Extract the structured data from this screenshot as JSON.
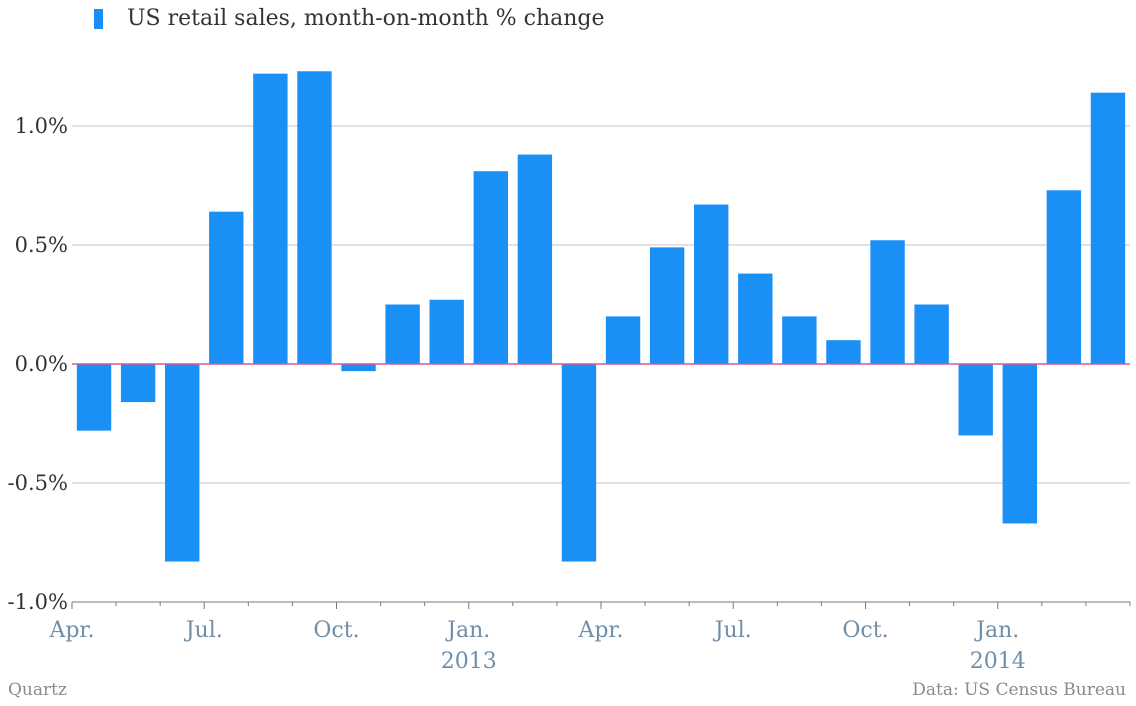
{
  "chart_data": {
    "type": "bar",
    "series": [
      {
        "name": "US retail sales, month-on-month % change",
        "color": "#1a8ff5",
        "values": [
          -0.28,
          -0.16,
          -0.83,
          0.64,
          1.22,
          1.23,
          -0.03,
          0.25,
          0.27,
          0.81,
          0.88,
          -0.83,
          0.2,
          0.49,
          0.67,
          0.38,
          0.2,
          0.1,
          0.52,
          0.25,
          -0.3,
          -0.67,
          0.73,
          1.14
        ]
      }
    ],
    "categories": [
      "Apr. 2012",
      "May 2012",
      "Jun. 2012",
      "Jul. 2012",
      "Aug. 2012",
      "Sep. 2012",
      "Oct. 2012",
      "Nov. 2012",
      "Dec. 2012",
      "Jan. 2013",
      "Feb. 2013",
      "Mar. 2013",
      "Apr. 2013",
      "May 2013",
      "Jun. 2013",
      "Jul. 2013",
      "Aug. 2013",
      "Sep. 2013",
      "Oct. 2013",
      "Nov. 2013",
      "Dec. 2013",
      "Jan. 2014",
      "Feb. 2014",
      "Mar. 2014"
    ],
    "ylim": [
      -1.0,
      1.25
    ],
    "yticks": [
      {
        "value": 1.0,
        "label": "1.0%"
      },
      {
        "value": 0.5,
        "label": "0.5%"
      },
      {
        "value": 0.0,
        "label": "0.0%"
      },
      {
        "value": -0.5,
        "label": "-0.5%"
      },
      {
        "value": -1.0,
        "label": "-1.0%"
      }
    ],
    "xticks": [
      {
        "index": 0,
        "label": "Apr."
      },
      {
        "index": 3,
        "label": "Jul."
      },
      {
        "index": 6,
        "label": "Oct."
      },
      {
        "index": 9,
        "label": "Jan.",
        "year": "2013"
      },
      {
        "index": 12,
        "label": "Apr."
      },
      {
        "index": 15,
        "label": "Jul."
      },
      {
        "index": 18,
        "label": "Oct."
      },
      {
        "index": 21,
        "label": "Jan.",
        "year": "2014"
      }
    ],
    "grid": true,
    "zero_line_color": "#d25a9a",
    "legend_position": "top-left"
  },
  "credit": "Quartz",
  "source": "Data: US Census Bureau"
}
